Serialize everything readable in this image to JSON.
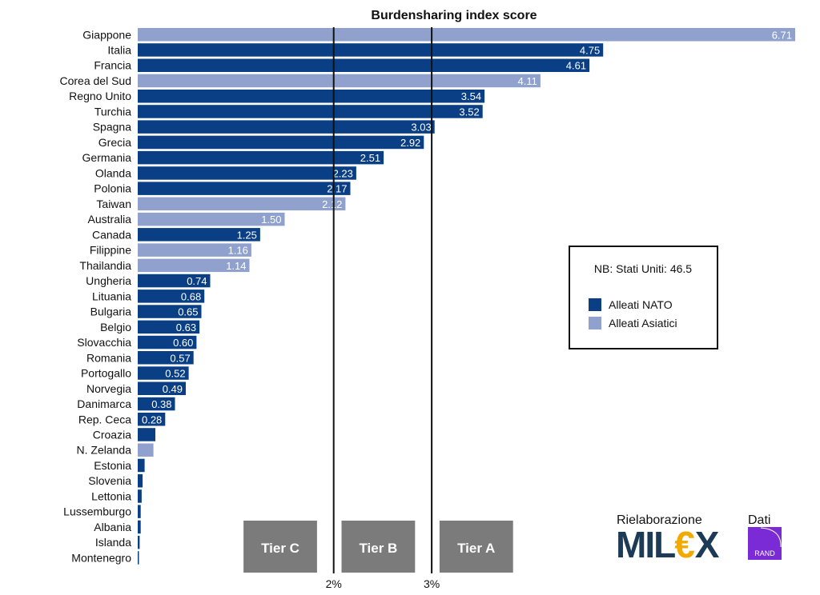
{
  "chart_data": {
    "type": "bar",
    "orientation": "horizontal",
    "title": "Burdensharing index score",
    "categories": [
      "Giappone",
      "Italia",
      "Francia",
      "Corea del Sud",
      "Regno Unito",
      "Turchia",
      "Spagna",
      "Grecia",
      "Germania",
      "Olanda",
      "Polonia",
      "Taiwan",
      "Australia",
      "Canada",
      "Filippine",
      "Thailandia",
      "Ungheria",
      "Lituania",
      "Bulgaria",
      "Belgio",
      "Slovacchia",
      "Romania",
      "Portogallo",
      "Norvegia",
      "Danimarca",
      "Rep. Ceca",
      "Croazia",
      "N. Zelanda",
      "Estonia",
      "Slovenia",
      "Lettonia",
      "Lussemburgo",
      "Albania",
      "Islanda",
      "Montenegro"
    ],
    "values": [
      6.71,
      4.75,
      4.61,
      4.11,
      3.54,
      3.52,
      3.03,
      2.92,
      2.51,
      2.23,
      2.17,
      2.12,
      1.5,
      1.25,
      1.16,
      1.14,
      0.74,
      0.68,
      0.65,
      0.63,
      0.6,
      0.57,
      0.52,
      0.49,
      0.38,
      0.28,
      0.18,
      0.16,
      0.07,
      0.05,
      0.04,
      0.03,
      0.03,
      0.02,
      0.01
    ],
    "value_labels": [
      "6.71",
      "4.75",
      "4.61",
      "4.11",
      "3.54",
      "3.52",
      "3.03",
      "2.92",
      "2.51",
      "2.23",
      "2.17",
      "2.12",
      "1.50",
      "1.25",
      "1.16",
      "1.14",
      "0.74",
      "0.68",
      "0.65",
      "0.63",
      "0.60",
      "0.57",
      "0.52",
      "0.49",
      "0.38",
      "0.28",
      "",
      "",
      "",
      "",
      "",
      "",
      "",
      "",
      ""
    ],
    "groups": [
      "asian",
      "nato",
      "nato",
      "asian",
      "nato",
      "nato",
      "nato",
      "nato",
      "nato",
      "nato",
      "nato",
      "asian",
      "asian",
      "nato",
      "asian",
      "asian",
      "nato",
      "nato",
      "nato",
      "nato",
      "nato",
      "nato",
      "nato",
      "nato",
      "nato",
      "nato",
      "nato",
      "asian",
      "nato",
      "nato",
      "nato",
      "nato",
      "nato",
      "nato",
      "nato"
    ],
    "xlim": [
      0,
      6.71
    ],
    "reference_lines": [
      {
        "label": "2%",
        "value": 2.0
      },
      {
        "label": "3%",
        "value": 3.0
      }
    ],
    "tiers": [
      {
        "label": "Tier C",
        "from": 1.08,
        "to": 1.83
      },
      {
        "label": "Tier B",
        "from": 2.08,
        "to": 2.83
      },
      {
        "label": "Tier A",
        "from": 3.08,
        "to": 3.83
      }
    ],
    "legend": {
      "note": "NB: Stati Uniti: 46.5",
      "placement": "right",
      "entries": [
        {
          "key": "nato",
          "label": "Alleati NATO",
          "color": "#0a3f86"
        },
        {
          "key": "asian",
          "label": "Alleati Asiatici",
          "color": "#8fa1cc"
        }
      ]
    },
    "colors": {
      "nato": "#0a3f86",
      "asian": "#8fa1cc",
      "tier": "#7b7b7b",
      "line": "#111111"
    }
  },
  "branding": {
    "rielaborazione": "Rielaborazione",
    "milex_left": "MIL",
    "milex_euro": "€",
    "milex_right": "X",
    "dati": "Dati",
    "rand": "RAND"
  }
}
